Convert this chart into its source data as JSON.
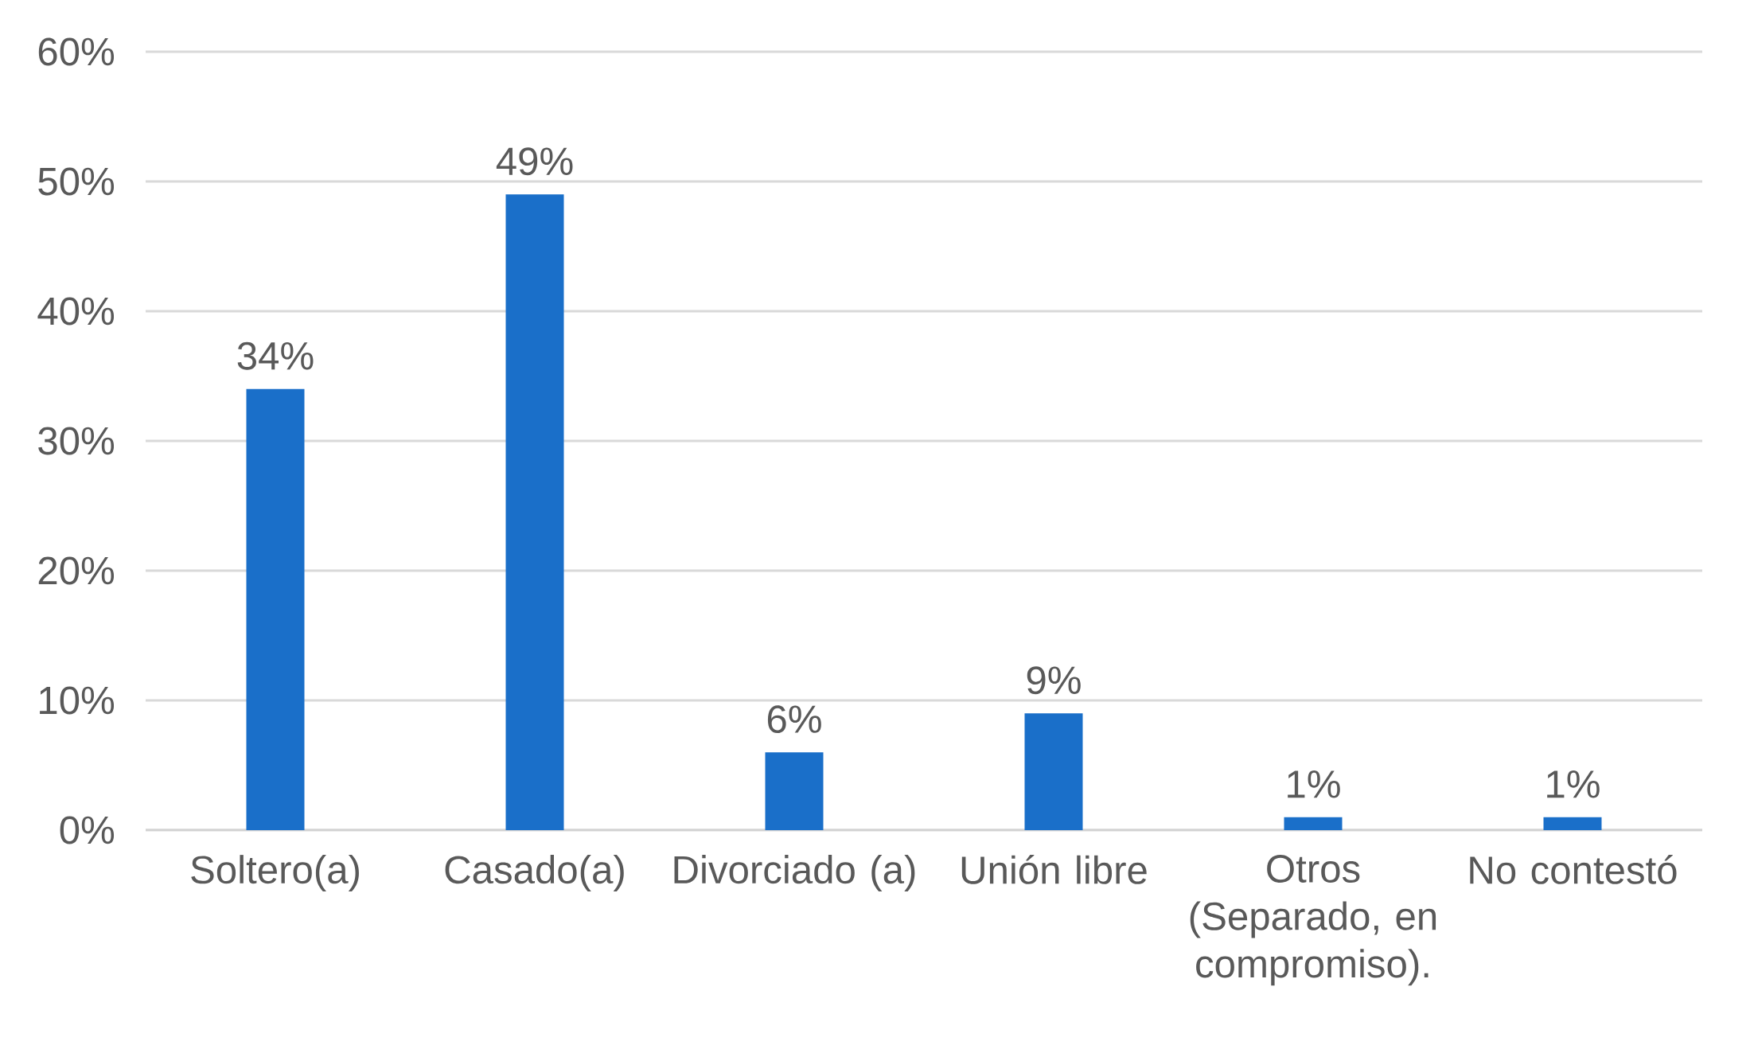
{
  "chart_data": {
    "type": "bar",
    "categories": [
      "Soltero(a)",
      "Casado(a)",
      "Divorciado (a)",
      "Unión libre",
      "Otros (Separado, en compromiso).",
      "No contestó"
    ],
    "values": [
      34,
      49,
      6,
      9,
      1,
      1
    ],
    "value_labels": [
      "34%",
      "49%",
      "6%",
      "9%",
      "1%",
      "1%"
    ],
    "color": "#1a6fc9",
    "ylim": [
      0,
      60
    ],
    "yticks": [
      {
        "value": 0,
        "label": "0%"
      },
      {
        "value": 10,
        "label": "10%"
      },
      {
        "value": 20,
        "label": "20%"
      },
      {
        "value": 30,
        "label": "30%"
      },
      {
        "value": 40,
        "label": "40%"
      },
      {
        "value": 50,
        "label": "50%"
      },
      {
        "value": 60,
        "label": "60%"
      }
    ],
    "grid": "y"
  }
}
